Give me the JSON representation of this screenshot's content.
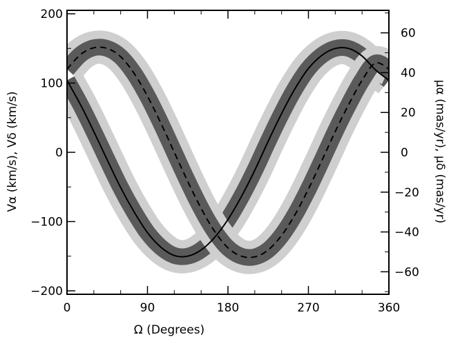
{
  "chart_data": {
    "type": "line",
    "title": "",
    "xlabel": "Ω (Degrees)",
    "ylabel": "Vα (km/s), Vδ (km/s)",
    "y2label": "μα (mas/yr), μδ (mas/yr)",
    "xlim": [
      0,
      360
    ],
    "ylim": [
      -205,
      205
    ],
    "y2lim": [
      -71.3,
      71.3
    ],
    "xticks": [
      0,
      90,
      180,
      270,
      360
    ],
    "yticks": [
      -200,
      -100,
      0,
      100,
      200
    ],
    "y2ticks": [
      -60,
      -40,
      -20,
      0,
      20,
      40,
      60
    ],
    "grid": false,
    "legend": "none",
    "x": [
      0,
      15,
      30,
      45,
      60,
      75,
      90,
      105,
      120,
      135,
      150,
      165,
      180,
      195,
      210,
      225,
      240,
      255,
      270,
      285,
      300,
      315,
      330,
      345,
      360
    ],
    "series": [
      {
        "style": "solid",
        "values": [
          104,
          69,
          30,
          -11,
          -51,
          -86,
          -116,
          -137,
          -149,
          -150,
          -141,
          -123,
          -97,
          -64,
          -26,
          16,
          56,
          92,
          121,
          140,
          150,
          150,
          139,
          119,
          104
        ]
      },
      {
        "style": "dashed",
        "values": [
          120,
          141,
          151,
          150,
          138,
          114,
          81,
          42,
          0,
          -42,
          -81,
          -114,
          -138,
          -150,
          -151,
          -141,
          -120,
          -90,
          -53,
          -12,
          30,
          69,
          104,
          129,
          120
        ]
      }
    ],
    "band_inner_halfwidth": 12,
    "band_outer_halfwidth": 24,
    "colors": {
      "inner_band": "#5a5a5a",
      "outer_band": "#cfcfcf",
      "line": "#000000"
    }
  }
}
